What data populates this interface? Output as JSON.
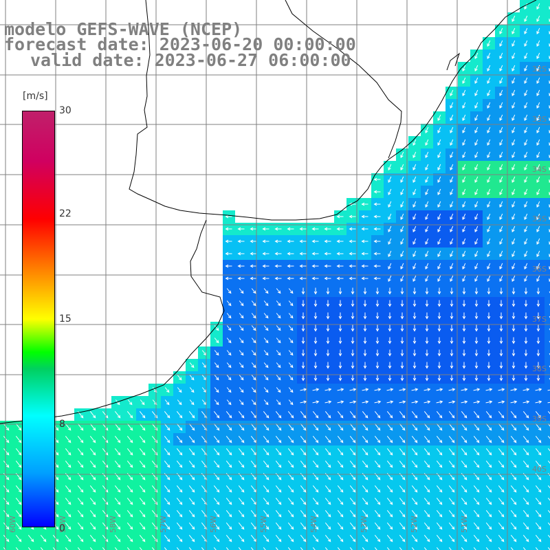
{
  "title": {
    "line1": "modelo GEFS-WAVE (NCEP)",
    "line2": "forecast date: 2023-06-20 00:00:00",
    "line3": "valid date: 2023-06-27 06:00:00"
  },
  "colorbar": {
    "unit": "[m/s]",
    "min": 0,
    "max": 30,
    "ticks": [
      {
        "value": 30,
        "label": "30"
      },
      {
        "value": 22,
        "label": "22"
      },
      {
        "value": 15,
        "label": "15"
      },
      {
        "value": 8,
        "label": "8"
      },
      {
        "value": 0,
        "label": "0"
      }
    ]
  },
  "lat_labels": [
    "32S",
    "33S",
    "34S",
    "35S",
    "36S",
    "37S",
    "38S",
    "39S",
    "40S"
  ],
  "lon_labels": [
    "60W",
    "59W",
    "58W",
    "57W",
    "56W",
    "55W",
    "54W",
    "53W",
    "52W",
    "51W"
  ],
  "colors": {
    "land": "#ffffff",
    "grid": "#7f7f7f",
    "coast": "#000000",
    "arrows": "#ffffff",
    "label_text": "#808080"
  }
}
